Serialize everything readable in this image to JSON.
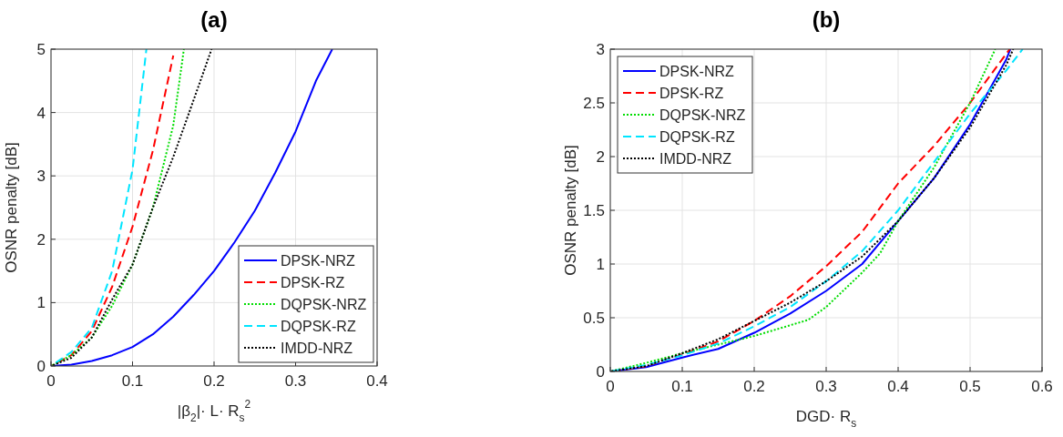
{
  "chart_data": [
    {
      "type": "line",
      "title": "(a)",
      "xlabel": "|β$_{2}$|· L· R$_{s}$$^{2}$",
      "ylabel": "OSNR penalty [dB]",
      "xlim": [
        0,
        0.4
      ],
      "xticks": [
        0,
        0.1,
        0.2,
        0.3,
        0.4
      ],
      "ylim": [
        0,
        5
      ],
      "yticks": [
        0,
        1,
        2,
        3,
        4,
        5
      ],
      "grid": true,
      "legend": "bottom right",
      "series": [
        {
          "name": "DPSK-NRZ",
          "color": "#0000ff",
          "line_style": "solid",
          "x": [
            0,
            0.025,
            0.05,
            0.075,
            0.1,
            0.125,
            0.15,
            0.175,
            0.2,
            0.225,
            0.25,
            0.275,
            0.3,
            0.325,
            0.345
          ],
          "values": [
            0,
            0.02,
            0.08,
            0.17,
            0.3,
            0.5,
            0.78,
            1.12,
            1.5,
            1.95,
            2.45,
            3.05,
            3.7,
            4.5,
            5
          ]
        },
        {
          "name": "DPSK-RZ",
          "color": "#ff0000",
          "line_style": "dashed",
          "x": [
            0,
            0.025,
            0.05,
            0.075,
            0.1,
            0.125,
            0.15
          ],
          "values": [
            0,
            0.17,
            0.55,
            1.25,
            2.2,
            3.4,
            4.9
          ]
        },
        {
          "name": "DQPSK-NRZ",
          "color": "#00dd00",
          "line_style": "dotted",
          "x": [
            0,
            0.025,
            0.05,
            0.075,
            0.1,
            0.125,
            0.15,
            0.163
          ],
          "values": [
            0,
            0.17,
            0.45,
            0.95,
            1.6,
            2.5,
            3.8,
            5
          ]
        },
        {
          "name": "DQPSK-RZ",
          "color": "#00e5ff",
          "line_style": "dashed",
          "x": [
            0,
            0.025,
            0.05,
            0.075,
            0.1,
            0.117
          ],
          "values": [
            0,
            0.22,
            0.6,
            1.5,
            3.1,
            5
          ]
        },
        {
          "name": "IMDD-NRZ",
          "color": "#000000",
          "line_style": "dotted",
          "x": [
            0,
            0.025,
            0.05,
            0.075,
            0.1,
            0.125,
            0.15,
            0.175,
            0.197
          ],
          "values": [
            0,
            0.13,
            0.45,
            1.05,
            1.6,
            2.5,
            3.3,
            4.2,
            5
          ]
        }
      ]
    },
    {
      "type": "line",
      "title": "(b)",
      "xlabel": "DGD· R$_{s}$",
      "ylabel": "OSNR penalty [dB]",
      "xlim": [
        0,
        0.6
      ],
      "xticks": [
        0,
        0.1,
        0.2,
        0.3,
        0.4,
        0.5,
        0.6
      ],
      "ylim": [
        0,
        3
      ],
      "yticks": [
        0,
        0.5,
        1,
        1.5,
        2,
        2.5,
        3
      ],
      "grid": true,
      "legend": "top left",
      "series": [
        {
          "name": "DPSK-NRZ",
          "color": "#0000ff",
          "line_style": "solid",
          "x": [
            0,
            0.05,
            0.1,
            0.15,
            0.2,
            0.25,
            0.3,
            0.35,
            0.4,
            0.45,
            0.5,
            0.55,
            0.556
          ],
          "values": [
            0,
            0.04,
            0.13,
            0.21,
            0.36,
            0.54,
            0.75,
            1.0,
            1.4,
            1.8,
            2.3,
            2.9,
            3
          ]
        },
        {
          "name": "DPSK-RZ",
          "color": "#ff0000",
          "line_style": "dashed",
          "x": [
            0,
            0.05,
            0.1,
            0.15,
            0.2,
            0.25,
            0.3,
            0.35,
            0.4,
            0.45,
            0.5,
            0.555
          ],
          "values": [
            0,
            0.05,
            0.16,
            0.28,
            0.47,
            0.7,
            0.98,
            1.3,
            1.75,
            2.1,
            2.5,
            3
          ]
        },
        {
          "name": "DQPSK-NRZ",
          "color": "#00dd00",
          "line_style": "dotted",
          "x": [
            0,
            0.05,
            0.1,
            0.15,
            0.2,
            0.275,
            0.3,
            0.35,
            0.375,
            0.4,
            0.45,
            0.5,
            0.535
          ],
          "values": [
            0,
            0.08,
            0.17,
            0.25,
            0.33,
            0.48,
            0.6,
            0.92,
            1.1,
            1.4,
            1.9,
            2.5,
            3
          ]
        },
        {
          "name": "DQPSK-RZ",
          "color": "#00e5ff",
          "line_style": "dashed",
          "x": [
            0,
            0.05,
            0.1,
            0.15,
            0.2,
            0.25,
            0.3,
            0.35,
            0.4,
            0.45,
            0.5,
            0.55,
            0.573
          ],
          "values": [
            0,
            0.06,
            0.15,
            0.26,
            0.42,
            0.6,
            0.84,
            1.12,
            1.5,
            1.95,
            2.4,
            2.8,
            3
          ]
        },
        {
          "name": "IMDD-NRZ",
          "color": "#000000",
          "line_style": "dotted",
          "x": [
            0,
            0.05,
            0.1,
            0.15,
            0.2,
            0.25,
            0.3,
            0.35,
            0.4,
            0.45,
            0.5,
            0.55,
            0.56
          ],
          "values": [
            0,
            0.05,
            0.17,
            0.3,
            0.47,
            0.64,
            0.84,
            1.07,
            1.4,
            1.8,
            2.27,
            2.85,
            3
          ]
        }
      ]
    }
  ]
}
